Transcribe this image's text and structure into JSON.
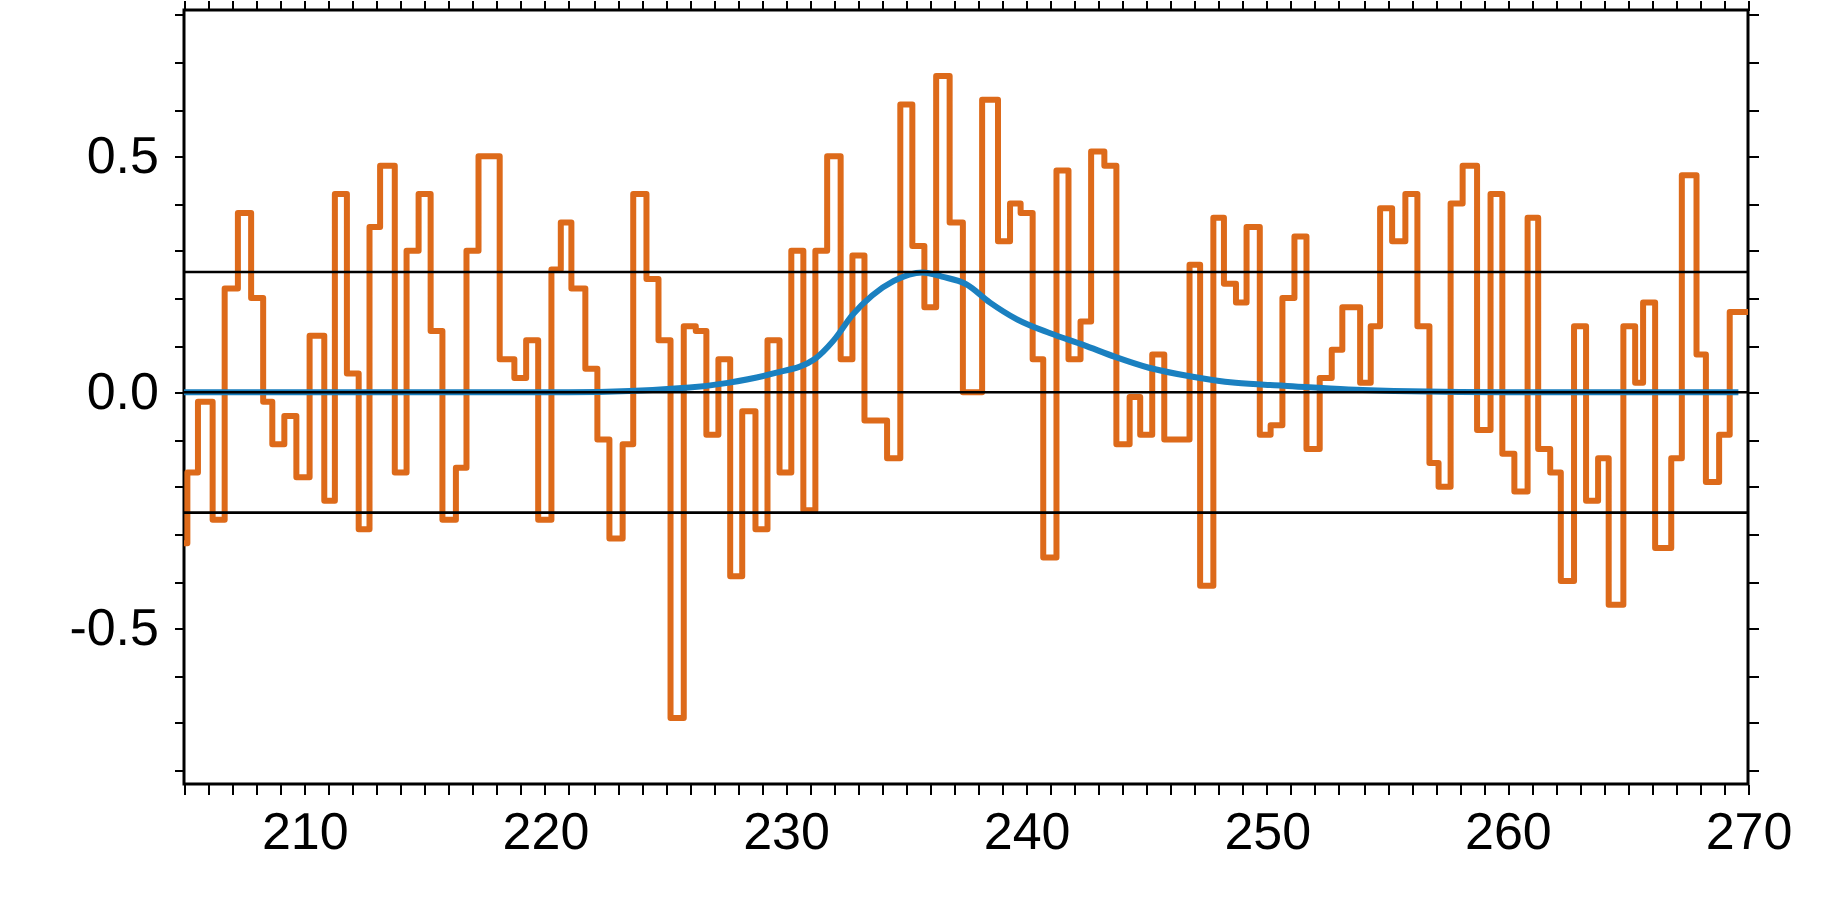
{
  "chart_data": {
    "type": "step",
    "xlim": [
      205,
      270
    ],
    "ylim": [
      -0.83,
      0.81
    ],
    "xticks": [
      {
        "value": 205,
        "label": null
      },
      {
        "value": 206,
        "label": null
      },
      {
        "value": 207,
        "label": null
      },
      {
        "value": 208,
        "label": null
      },
      {
        "value": 209,
        "label": null
      },
      210,
      {
        "value": 211,
        "label": null
      },
      {
        "value": 212,
        "label": null
      },
      {
        "value": 213,
        "label": null
      },
      {
        "value": 214,
        "label": null
      },
      {
        "value": 215,
        "label": null
      },
      {
        "value": 216,
        "label": null
      },
      {
        "value": 217,
        "label": null
      },
      {
        "value": 218,
        "label": null
      },
      {
        "value": 219,
        "label": null
      },
      220,
      {
        "value": 221,
        "label": null
      },
      {
        "value": 222,
        "label": null
      },
      {
        "value": 223,
        "label": null
      },
      {
        "value": 224,
        "label": null
      },
      {
        "value": 225,
        "label": null
      },
      {
        "value": 226,
        "label": null
      },
      {
        "value": 227,
        "label": null
      },
      {
        "value": 228,
        "label": null
      },
      {
        "value": 229,
        "label": null
      },
      230,
      {
        "value": 231,
        "label": null
      },
      {
        "value": 232,
        "label": null
      },
      {
        "value": 233,
        "label": null
      },
      {
        "value": 234,
        "label": null
      },
      {
        "value": 235,
        "label": null
      },
      {
        "value": 236,
        "label": null
      },
      {
        "value": 237,
        "label": null
      },
      {
        "value": 238,
        "label": null
      },
      {
        "value": 239,
        "label": null
      },
      240,
      {
        "value": 241,
        "label": null
      },
      {
        "value": 242,
        "label": null
      },
      {
        "value": 243,
        "label": null
      },
      {
        "value": 244,
        "label": null
      },
      {
        "value": 245,
        "label": null
      },
      {
        "value": 246,
        "label": null
      },
      {
        "value": 247,
        "label": null
      },
      {
        "value": 248,
        "label": null
      },
      {
        "value": 249,
        "label": null
      },
      250,
      {
        "value": 251,
        "label": null
      },
      {
        "value": 252,
        "label": null
      },
      {
        "value": 253,
        "label": null
      },
      {
        "value": 254,
        "label": null
      },
      {
        "value": 255,
        "label": null
      },
      {
        "value": 256,
        "label": null
      },
      {
        "value": 257,
        "label": null
      },
      {
        "value": 258,
        "label": null
      },
      {
        "value": 259,
        "label": null
      },
      260,
      {
        "value": 261,
        "label": null
      },
      {
        "value": 262,
        "label": null
      },
      {
        "value": 263,
        "label": null
      },
      {
        "value": 264,
        "label": null
      },
      {
        "value": 265,
        "label": null
      },
      {
        "value": 266,
        "label": null
      },
      {
        "value": 267,
        "label": null
      },
      {
        "value": 268,
        "label": null
      },
      {
        "value": 269,
        "label": null
      },
      270
    ],
    "yticks": [
      {
        "value": -0.8,
        "label": null
      },
      {
        "value": -0.7,
        "label": null
      },
      {
        "value": -0.6,
        "label": null
      },
      -0.5,
      {
        "value": -0.4,
        "label": null
      },
      {
        "value": -0.3,
        "label": null
      },
      {
        "value": -0.2,
        "label": null
      },
      {
        "value": -0.1,
        "label": null
      },
      {
        "value": 0,
        "label": "0.0"
      },
      {
        "value": 0.1,
        "label": null
      },
      {
        "value": 0.2,
        "label": null
      },
      {
        "value": 0.3,
        "label": null
      },
      {
        "value": 0.4,
        "label": null
      },
      0.5,
      {
        "value": 0.6,
        "label": null
      },
      {
        "value": 0.7,
        "label": null
      },
      {
        "value": 0.8,
        "label": null
      }
    ],
    "grid": false,
    "marker": "none",
    "ref_lines": [
      {
        "axis": "y",
        "value": 0.255,
        "color": "#000000"
      },
      {
        "axis": "y",
        "value": 0,
        "color": "#000000"
      },
      {
        "axis": "y",
        "value": -0.255,
        "color": "#000000"
      }
    ],
    "series": [
      {
        "type": "step",
        "color": "#dd6a1a",
        "x": [
          205,
          205.14,
          205.58,
          206.19,
          206.69,
          207.24,
          207.79,
          208.29,
          208.67,
          209.17,
          209.67,
          210.22,
          210.83,
          211.27,
          211.77,
          212.26,
          212.71,
          213.15,
          213.76,
          214.25,
          214.75,
          215.25,
          215.74,
          216.3,
          216.74,
          217.24,
          218.12,
          218.73,
          219.22,
          219.72,
          220.27,
          220.66,
          221.1,
          221.68,
          222.18,
          222.68,
          223.23,
          223.67,
          224.22,
          224.72,
          225.22,
          225.77,
          226.27,
          226.71,
          227.21,
          227.7,
          228.2,
          228.75,
          229.25,
          229.75,
          230.24,
          230.74,
          231.24,
          231.73,
          232.29,
          232.78,
          233.28,
          234.22,
          234.77,
          235.27,
          235.77,
          236.26,
          236.82,
          237.37,
          238.17,
          238.83,
          239.33,
          239.77,
          240.27,
          240.71,
          241.26,
          241.76,
          242.26,
          242.7,
          243.25,
          243.75,
          244.3,
          244.74,
          245.24,
          245.74,
          246.79,
          247.23,
          247.78,
          248.22,
          248.72,
          249.16,
          249.71,
          250.16,
          250.65,
          251.15,
          251.65,
          252.2,
          252.7,
          253.14,
          253.88,
          254.32,
          254.71,
          255.21,
          255.76,
          256.26,
          256.76,
          257.14,
          257.64,
          258.14,
          258.74,
          259.3,
          259.79,
          260.29,
          260.84,
          261.28,
          261.78,
          262.22,
          262.77,
          263.27,
          263.77,
          264.21,
          264.82,
          265.31,
          265.64,
          266.14,
          266.81,
          267.25,
          267.86,
          268.25,
          268.8,
          269.24,
          270
        ],
        "values": [
          -0.32,
          -0.17,
          -0.02,
          -0.27,
          0.22,
          0.38,
          0.2,
          -0.02,
          -0.11,
          -0.05,
          -0.18,
          0.12,
          -0.23,
          0.42,
          0.04,
          -0.29,
          0.35,
          0.48,
          -0.17,
          0.3,
          0.42,
          0.13,
          -0.27,
          -0.16,
          0.3,
          0.5,
          0.07,
          0.03,
          0.11,
          -0.27,
          0.26,
          0.36,
          0.22,
          0.05,
          -0.1,
          -0.31,
          -0.11,
          0.42,
          0.24,
          0.11,
          -0.69,
          0.14,
          0.13,
          -0.09,
          0.07,
          -0.39,
          -0.04,
          -0.29,
          0.11,
          -0.17,
          0.3,
          -0.25,
          0.3,
          0.5,
          0.07,
          0.29,
          -0.06,
          -0.14,
          0.61,
          0.31,
          0.18,
          0.67,
          0.36,
          0,
          0.62,
          0.32,
          0.4,
          0.38,
          0.07,
          -0.35,
          0.47,
          0.07,
          0.15,
          0.51,
          0.48,
          -0.11,
          -0.01,
          -0.09,
          0.08,
          -0.1,
          0.27,
          -0.41,
          0.37,
          0.23,
          0.19,
          0.35,
          -0.09,
          -0.07,
          0.2,
          0.33,
          -0.12,
          0.03,
          0.09,
          0.18,
          0.02,
          0.14,
          0.39,
          0.32,
          0.42,
          0.14,
          -0.15,
          -0.2,
          0.4,
          0.48,
          -0.08,
          0.42,
          -0.13,
          -0.21,
          0.37,
          -0.12,
          -0.17,
          -0.4,
          0.14,
          -0.23,
          -0.14,
          -0.45,
          0.14,
          0.02,
          0.19,
          -0.33,
          -0.14,
          0.46,
          0.08,
          -0.19,
          -0.09,
          0.17,
          0.17
        ]
      },
      {
        "type": "line",
        "color": "#1a80c0",
        "x": [
          205,
          215,
          221,
          226,
          227.6,
          229.5,
          231.2,
          232,
          232.8,
          233.6,
          234.5,
          235.7,
          236.5,
          237.5,
          238.5,
          239.6,
          241,
          242.4,
          243.7,
          245.1,
          246.8,
          248.7,
          250.7,
          253.4,
          256,
          260,
          269.6
        ],
        "values": [
          0,
          0,
          0,
          0.01,
          0.02,
          0.04,
          0.07,
          0.11,
          0.165,
          0.205,
          0.236,
          0.254,
          0.245,
          0.229,
          0.19,
          0.155,
          0.125,
          0.1,
          0.075,
          0.052,
          0.034,
          0.02,
          0.014,
          0.006,
          0.002,
          0,
          0
        ]
      }
    ]
  }
}
